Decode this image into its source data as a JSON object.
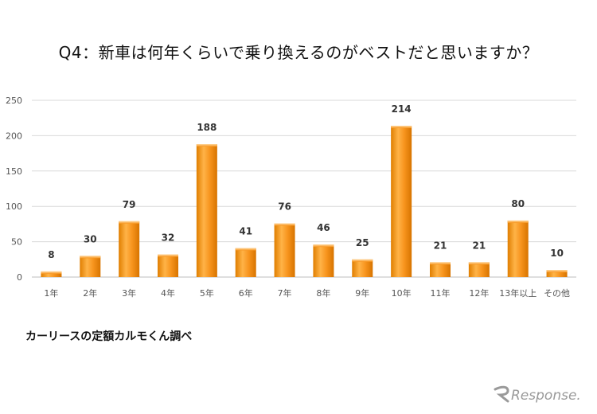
{
  "chart_data": {
    "type": "bar",
    "title": "Q4：新車は何年くらいで乗り換えるのがベストだと思いますか？",
    "categories": [
      "1年",
      "2年",
      "3年",
      "4年",
      "5年",
      "6年",
      "7年",
      "8年",
      "9年",
      "10年",
      "11年",
      "12年",
      "13年以上",
      "その他"
    ],
    "values": [
      8,
      30,
      79,
      32,
      188,
      41,
      76,
      46,
      25,
      214,
      21,
      21,
      80,
      10
    ],
    "data_labels": [
      "8",
      "30",
      "79",
      "32",
      "188",
      "41",
      "76",
      "46",
      "25",
      "214",
      "21",
      "21",
      "80",
      "10"
    ],
    "y_ticks": [
      "0",
      "50",
      "100",
      "150",
      "200",
      "250"
    ],
    "ylim": [
      0,
      250
    ],
    "xlabel": "",
    "ylabel": "",
    "grid": true,
    "legend": "none",
    "bar_color": "#F7941D",
    "bar_highlight": "#FFC266",
    "bar_shadow": "#D97A00"
  },
  "source": "カーリースの定額カルモくん調べ",
  "watermark": "Response."
}
